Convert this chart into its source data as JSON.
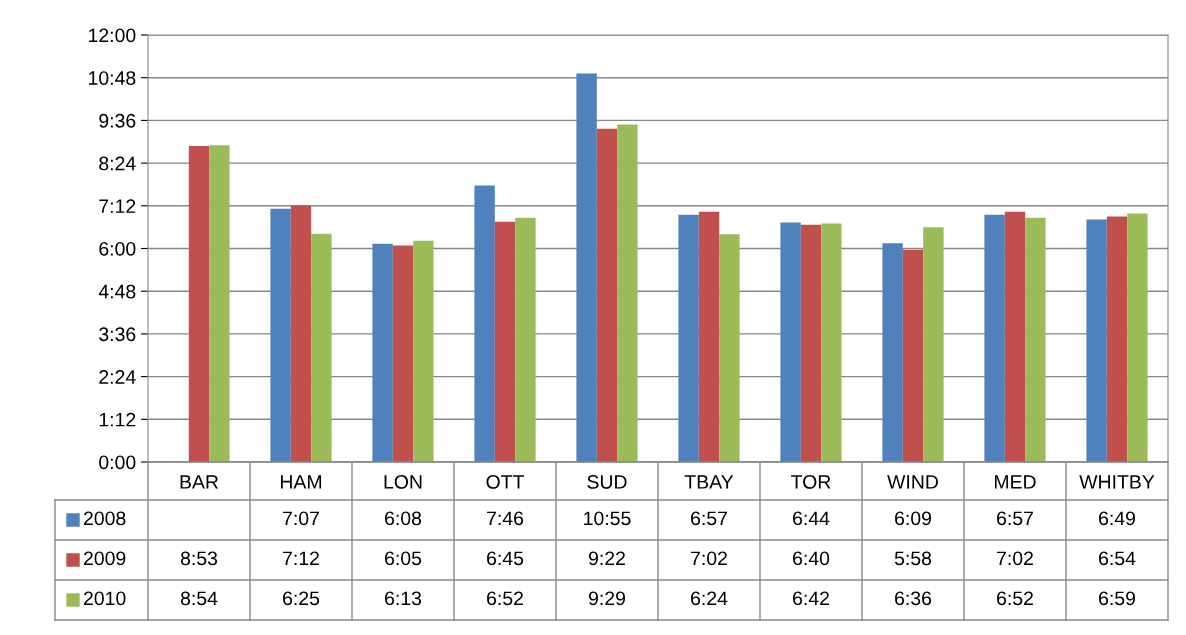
{
  "chart_data": {
    "type": "bar",
    "categories": [
      "BAR",
      "HAM",
      "LON",
      "OTT",
      "SUD",
      "TBAY",
      "TOR",
      "WIND",
      "MED",
      "WHITBY"
    ],
    "series": [
      {
        "name": "2008",
        "color": "#4f81bd",
        "values": [
          null,
          7.117,
          6.133,
          7.767,
          10.917,
          6.95,
          6.733,
          6.15,
          6.95,
          6.817
        ],
        "value_labels": [
          null,
          "7:07",
          "6:08",
          "7:46",
          "10:55",
          "6:57",
          "6:44",
          "6:09",
          "6:57",
          "6:49"
        ]
      },
      {
        "name": "2009",
        "color": "#c0504d",
        "values": [
          8.883,
          7.2,
          6.083,
          6.75,
          9.367,
          7.033,
          6.667,
          5.967,
          7.033,
          6.9
        ],
        "value_labels": [
          "8:53",
          "7:12",
          "6:05",
          "6:45",
          "9:22",
          "7:02",
          "6:40",
          "5:58",
          "7:02",
          "6:54"
        ]
      },
      {
        "name": "2010",
        "color": "#9bbb59",
        "values": [
          8.9,
          6.417,
          6.217,
          6.867,
          9.483,
          6.4,
          6.7,
          6.6,
          6.867,
          6.983
        ],
        "value_labels": [
          "8:54",
          "6:25",
          "6:13",
          "6:52",
          "9:29",
          "6:24",
          "6:42",
          "6:36",
          "6:52",
          "6:59"
        ]
      }
    ],
    "ylim": [
      0,
      12
    ],
    "yticks": [
      {
        "value": 0,
        "label": "0:00"
      },
      {
        "value": 1.2,
        "label": "1:12"
      },
      {
        "value": 2.4,
        "label": "2:24"
      },
      {
        "value": 3.6,
        "label": "3:36"
      },
      {
        "value": 4.8,
        "label": "4:48"
      },
      {
        "value": 6,
        "label": "6:00"
      },
      {
        "value": 7.2,
        "label": "7:12"
      },
      {
        "value": 8.4,
        "label": "8:24"
      },
      {
        "value": 9.6,
        "label": "9:36"
      },
      {
        "value": 10.8,
        "label": "10:48"
      },
      {
        "value": 12,
        "label": "12:00"
      }
    ],
    "grid": "y",
    "legend": "bottom left"
  }
}
